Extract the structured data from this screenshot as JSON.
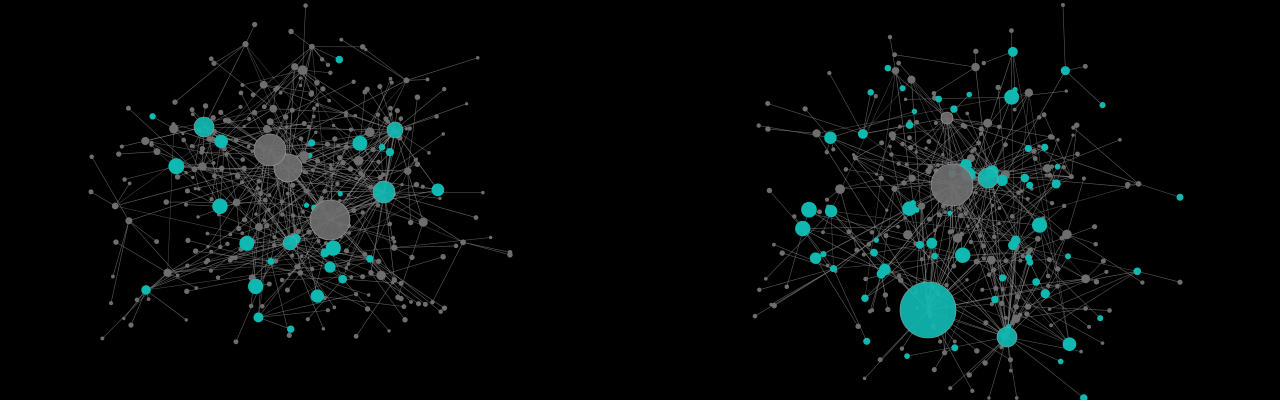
{
  "colors": {
    "background": "#000000",
    "edge": "#8a8a8a",
    "node_gray": "#6e6e6e",
    "node_cyan": "#0fb9b1",
    "node_stroke": "#9aa0a0"
  },
  "networks": [
    {
      "name": "",
      "hubs_gray_count": 3,
      "hubs_cyan_count": 4,
      "node_count_estimate": 380,
      "cyan_node_count_estimate": 35
    },
    {
      "name": "",
      "hubs_gray_count": 1,
      "hubs_cyan_count": 3,
      "node_count_estimate": 340,
      "cyan_node_count_estimate": 60
    }
  ]
}
